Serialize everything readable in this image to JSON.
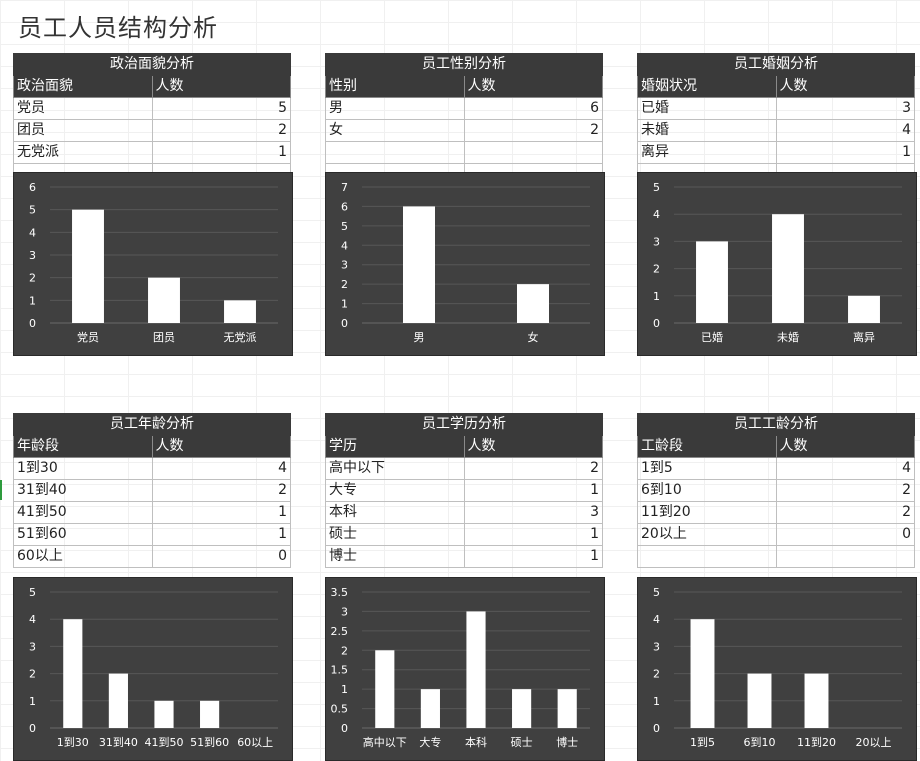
{
  "page": {
    "title": "员工人员结构分析"
  },
  "sections": [
    {
      "key": "politics",
      "table": {
        "title": "政治面貌分析",
        "col1": "政治面貌",
        "col2": "人数",
        "rows": [
          {
            "label": "党员",
            "value": 5
          },
          {
            "label": "团员",
            "value": 2
          },
          {
            "label": "无党派",
            "value": 1
          }
        ],
        "empty_rows": 1
      },
      "chart_data": {
        "type": "bar",
        "categories": [
          "党员",
          "团员",
          "无党派"
        ],
        "values": [
          5,
          2,
          1
        ],
        "ylim": [
          0,
          6
        ],
        "yticks": [
          0,
          1,
          2,
          3,
          4,
          5,
          6
        ],
        "grid": true
      }
    },
    {
      "key": "gender",
      "table": {
        "title": "员工性别分析",
        "col1": "性别",
        "col2": "人数",
        "rows": [
          {
            "label": "男",
            "value": 6
          },
          {
            "label": "女",
            "value": 2
          }
        ],
        "empty_rows": 2
      },
      "chart_data": {
        "type": "bar",
        "categories": [
          "男",
          "女"
        ],
        "values": [
          6,
          2
        ],
        "ylim": [
          0,
          7
        ],
        "yticks": [
          0,
          1,
          2,
          3,
          4,
          5,
          6,
          7
        ],
        "grid": true
      }
    },
    {
      "key": "marriage",
      "table": {
        "title": "员工婚姻分析",
        "col1": "婚姻状况",
        "col2": "人数",
        "rows": [
          {
            "label": "已婚",
            "value": 3
          },
          {
            "label": "未婚",
            "value": 4
          },
          {
            "label": "离异",
            "value": 1
          }
        ],
        "empty_rows": 1
      },
      "chart_data": {
        "type": "bar",
        "categories": [
          "已婚",
          "未婚",
          "离异"
        ],
        "values": [
          3,
          4,
          1
        ],
        "ylim": [
          0,
          5
        ],
        "yticks": [
          0,
          1,
          2,
          3,
          4,
          5
        ],
        "grid": true
      }
    },
    {
      "key": "age",
      "table": {
        "title": "员工年龄分析",
        "col1": "年龄段",
        "col2": "人数",
        "rows": [
          {
            "label": "1到30",
            "value": 4
          },
          {
            "label": "31到40",
            "value": 2
          },
          {
            "label": "41到50",
            "value": 1
          },
          {
            "label": "51到60",
            "value": 1
          },
          {
            "label": "60以上",
            "value": 0
          }
        ],
        "empty_rows": 0
      },
      "chart_data": {
        "type": "bar",
        "categories": [
          "1到30",
          "31到40",
          "41到50",
          "51到60",
          "60以上"
        ],
        "values": [
          4,
          2,
          1,
          1,
          0
        ],
        "ylim": [
          0,
          5
        ],
        "yticks": [
          0,
          1,
          2,
          3,
          4,
          5
        ],
        "grid": true
      }
    },
    {
      "key": "education",
      "table": {
        "title": "员工学历分析",
        "col1": "学历",
        "col2": "人数",
        "rows": [
          {
            "label": "高中以下",
            "value": 2
          },
          {
            "label": "大专",
            "value": 1
          },
          {
            "label": "本科",
            "value": 3
          },
          {
            "label": "硕士",
            "value": 1
          },
          {
            "label": "博士",
            "value": 1
          }
        ],
        "empty_rows": 0
      },
      "chart_data": {
        "type": "bar",
        "categories": [
          "高中以下",
          "大专",
          "本科",
          "硕士",
          "博士"
        ],
        "values": [
          2,
          1,
          3,
          1,
          1
        ],
        "ylim": [
          0,
          3.5
        ],
        "yticks": [
          0,
          0.5,
          1,
          1.5,
          2,
          2.5,
          3,
          3.5
        ],
        "grid": true
      }
    },
    {
      "key": "seniority",
      "table": {
        "title": "员工工龄分析",
        "col1": "工龄段",
        "col2": "人数",
        "rows": [
          {
            "label": "1到5",
            "value": 4
          },
          {
            "label": "6到10",
            "value": 2
          },
          {
            "label": "11到20",
            "value": 2
          },
          {
            "label": "20以上",
            "value": 0
          }
        ],
        "empty_rows": 1
      },
      "chart_data": {
        "type": "bar",
        "categories": [
          "1到5",
          "6到10",
          "11到20",
          "20以上"
        ],
        "values": [
          4,
          2,
          2,
          0
        ],
        "ylim": [
          0,
          5
        ],
        "yticks": [
          0,
          1,
          2,
          3,
          4,
          5
        ],
        "grid": true
      }
    }
  ]
}
